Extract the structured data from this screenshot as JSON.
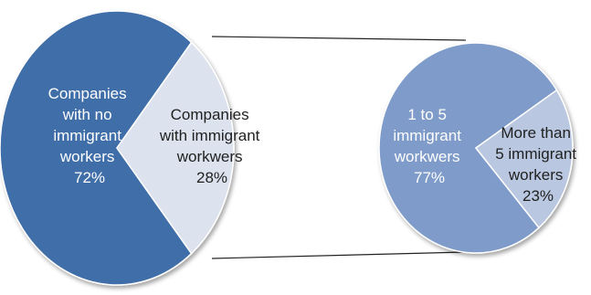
{
  "chart_data": [
    {
      "type": "pie",
      "categories": [
        "Companies with no immigrant workers",
        "Companies with immigrant workwers"
      ],
      "values": [
        72,
        28
      ],
      "labels": [
        {
          "lines": [
            "Companies",
            "with no",
            "immigrant",
            "workers",
            "72%"
          ]
        },
        {
          "lines": [
            "Companies",
            "with immigrant",
            "workwers",
            "28%"
          ]
        }
      ],
      "colors": [
        "#3f6ea8",
        "#dce3ee"
      ]
    },
    {
      "type": "pie",
      "categories": [
        "1 to 5 immigrant workwers",
        "More than 5 immigrant workers"
      ],
      "values": [
        77,
        23
      ],
      "labels": [
        {
          "lines": [
            "1 to 5",
            "immigrant",
            "workwers",
            "77%"
          ]
        },
        {
          "lines": [
            "More than",
            "5 immigrant",
            "workers",
            "23%"
          ]
        }
      ],
      "colors": [
        "#7f9bc9",
        "#b9c8e0"
      ]
    }
  ]
}
